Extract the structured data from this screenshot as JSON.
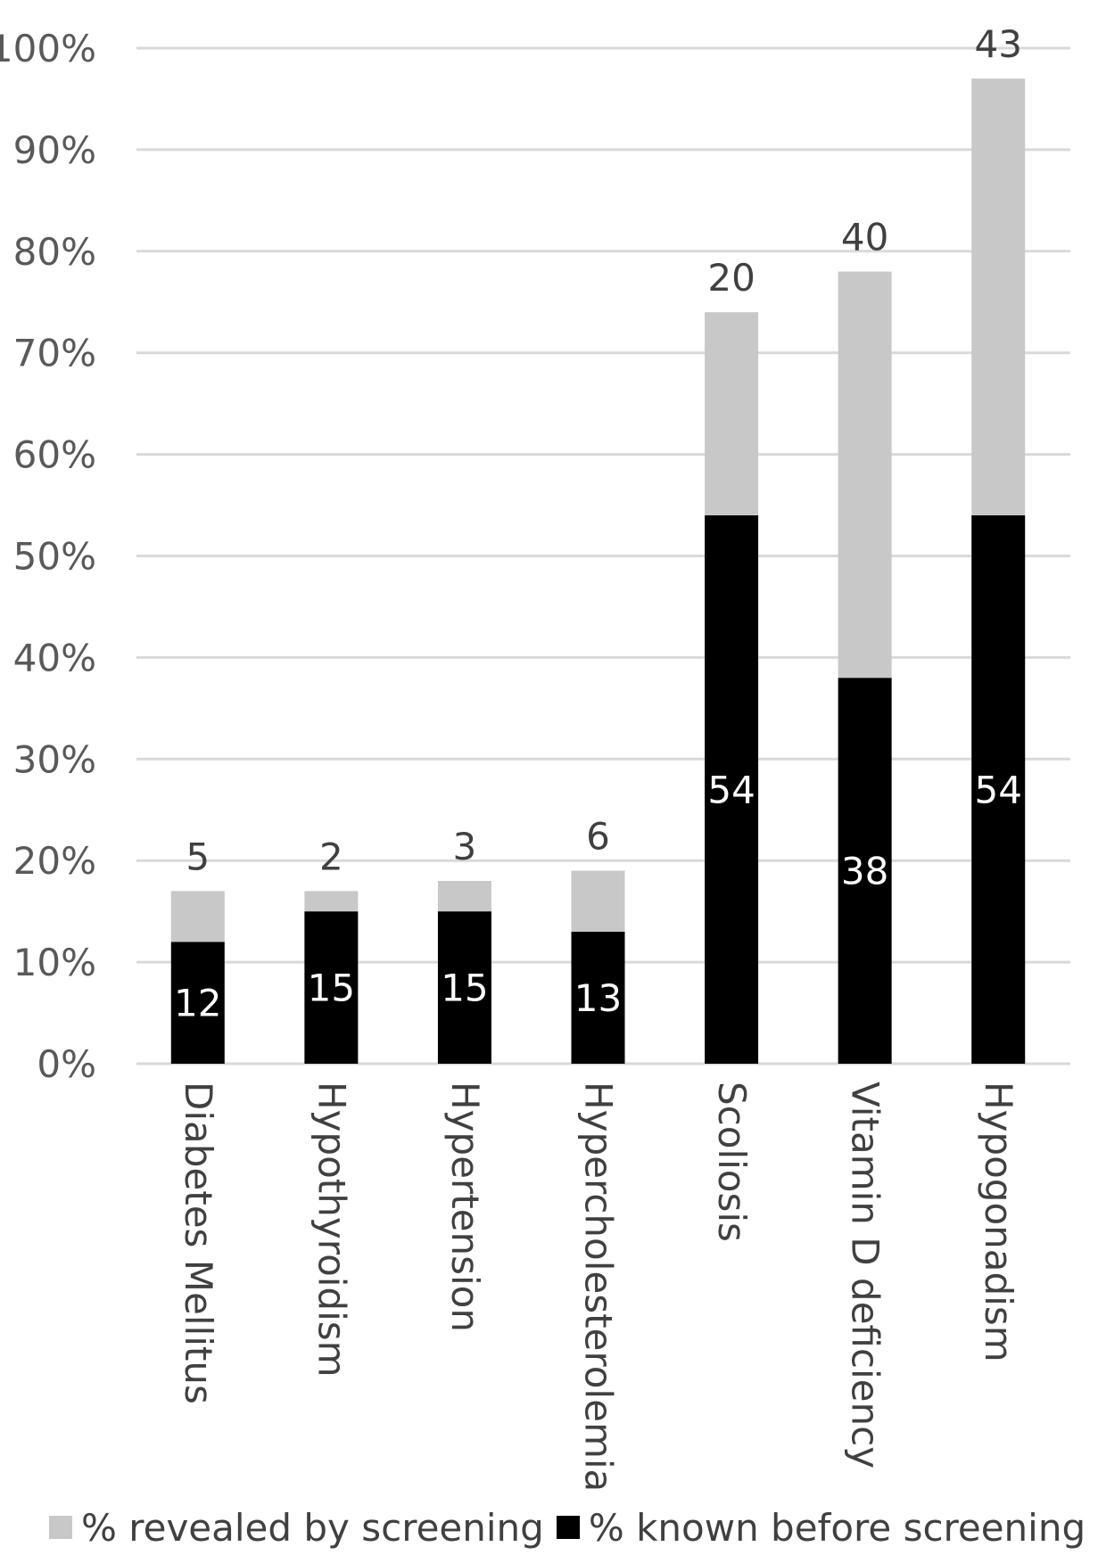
{
  "chart_data": {
    "type": "bar",
    "stacked": true,
    "categories": [
      "Diabetes Mellitus",
      "Hypothyroidism",
      "Hypertension",
      "Hypercholesterolemia",
      "Scoliosis",
      "Vitamin D deficiency",
      "Hypogonadism"
    ],
    "series": [
      {
        "name": "% known before screening",
        "color": "#000000",
        "values": [
          12,
          15,
          15,
          13,
          54,
          38,
          54
        ]
      },
      {
        "name": "% revealed by screening",
        "color": "#c8c8c8",
        "values": [
          5,
          2,
          3,
          6,
          20,
          40,
          43
        ]
      }
    ],
    "y_ticks": [
      "0%",
      "10%",
      "20%",
      "30%",
      "40%",
      "50%",
      "60%",
      "70%",
      "80%",
      "90%",
      "100%"
    ],
    "ylim": [
      0,
      100
    ],
    "title": "",
    "xlabel": "",
    "ylabel": "",
    "grid": true,
    "legend_position": "bottom"
  }
}
